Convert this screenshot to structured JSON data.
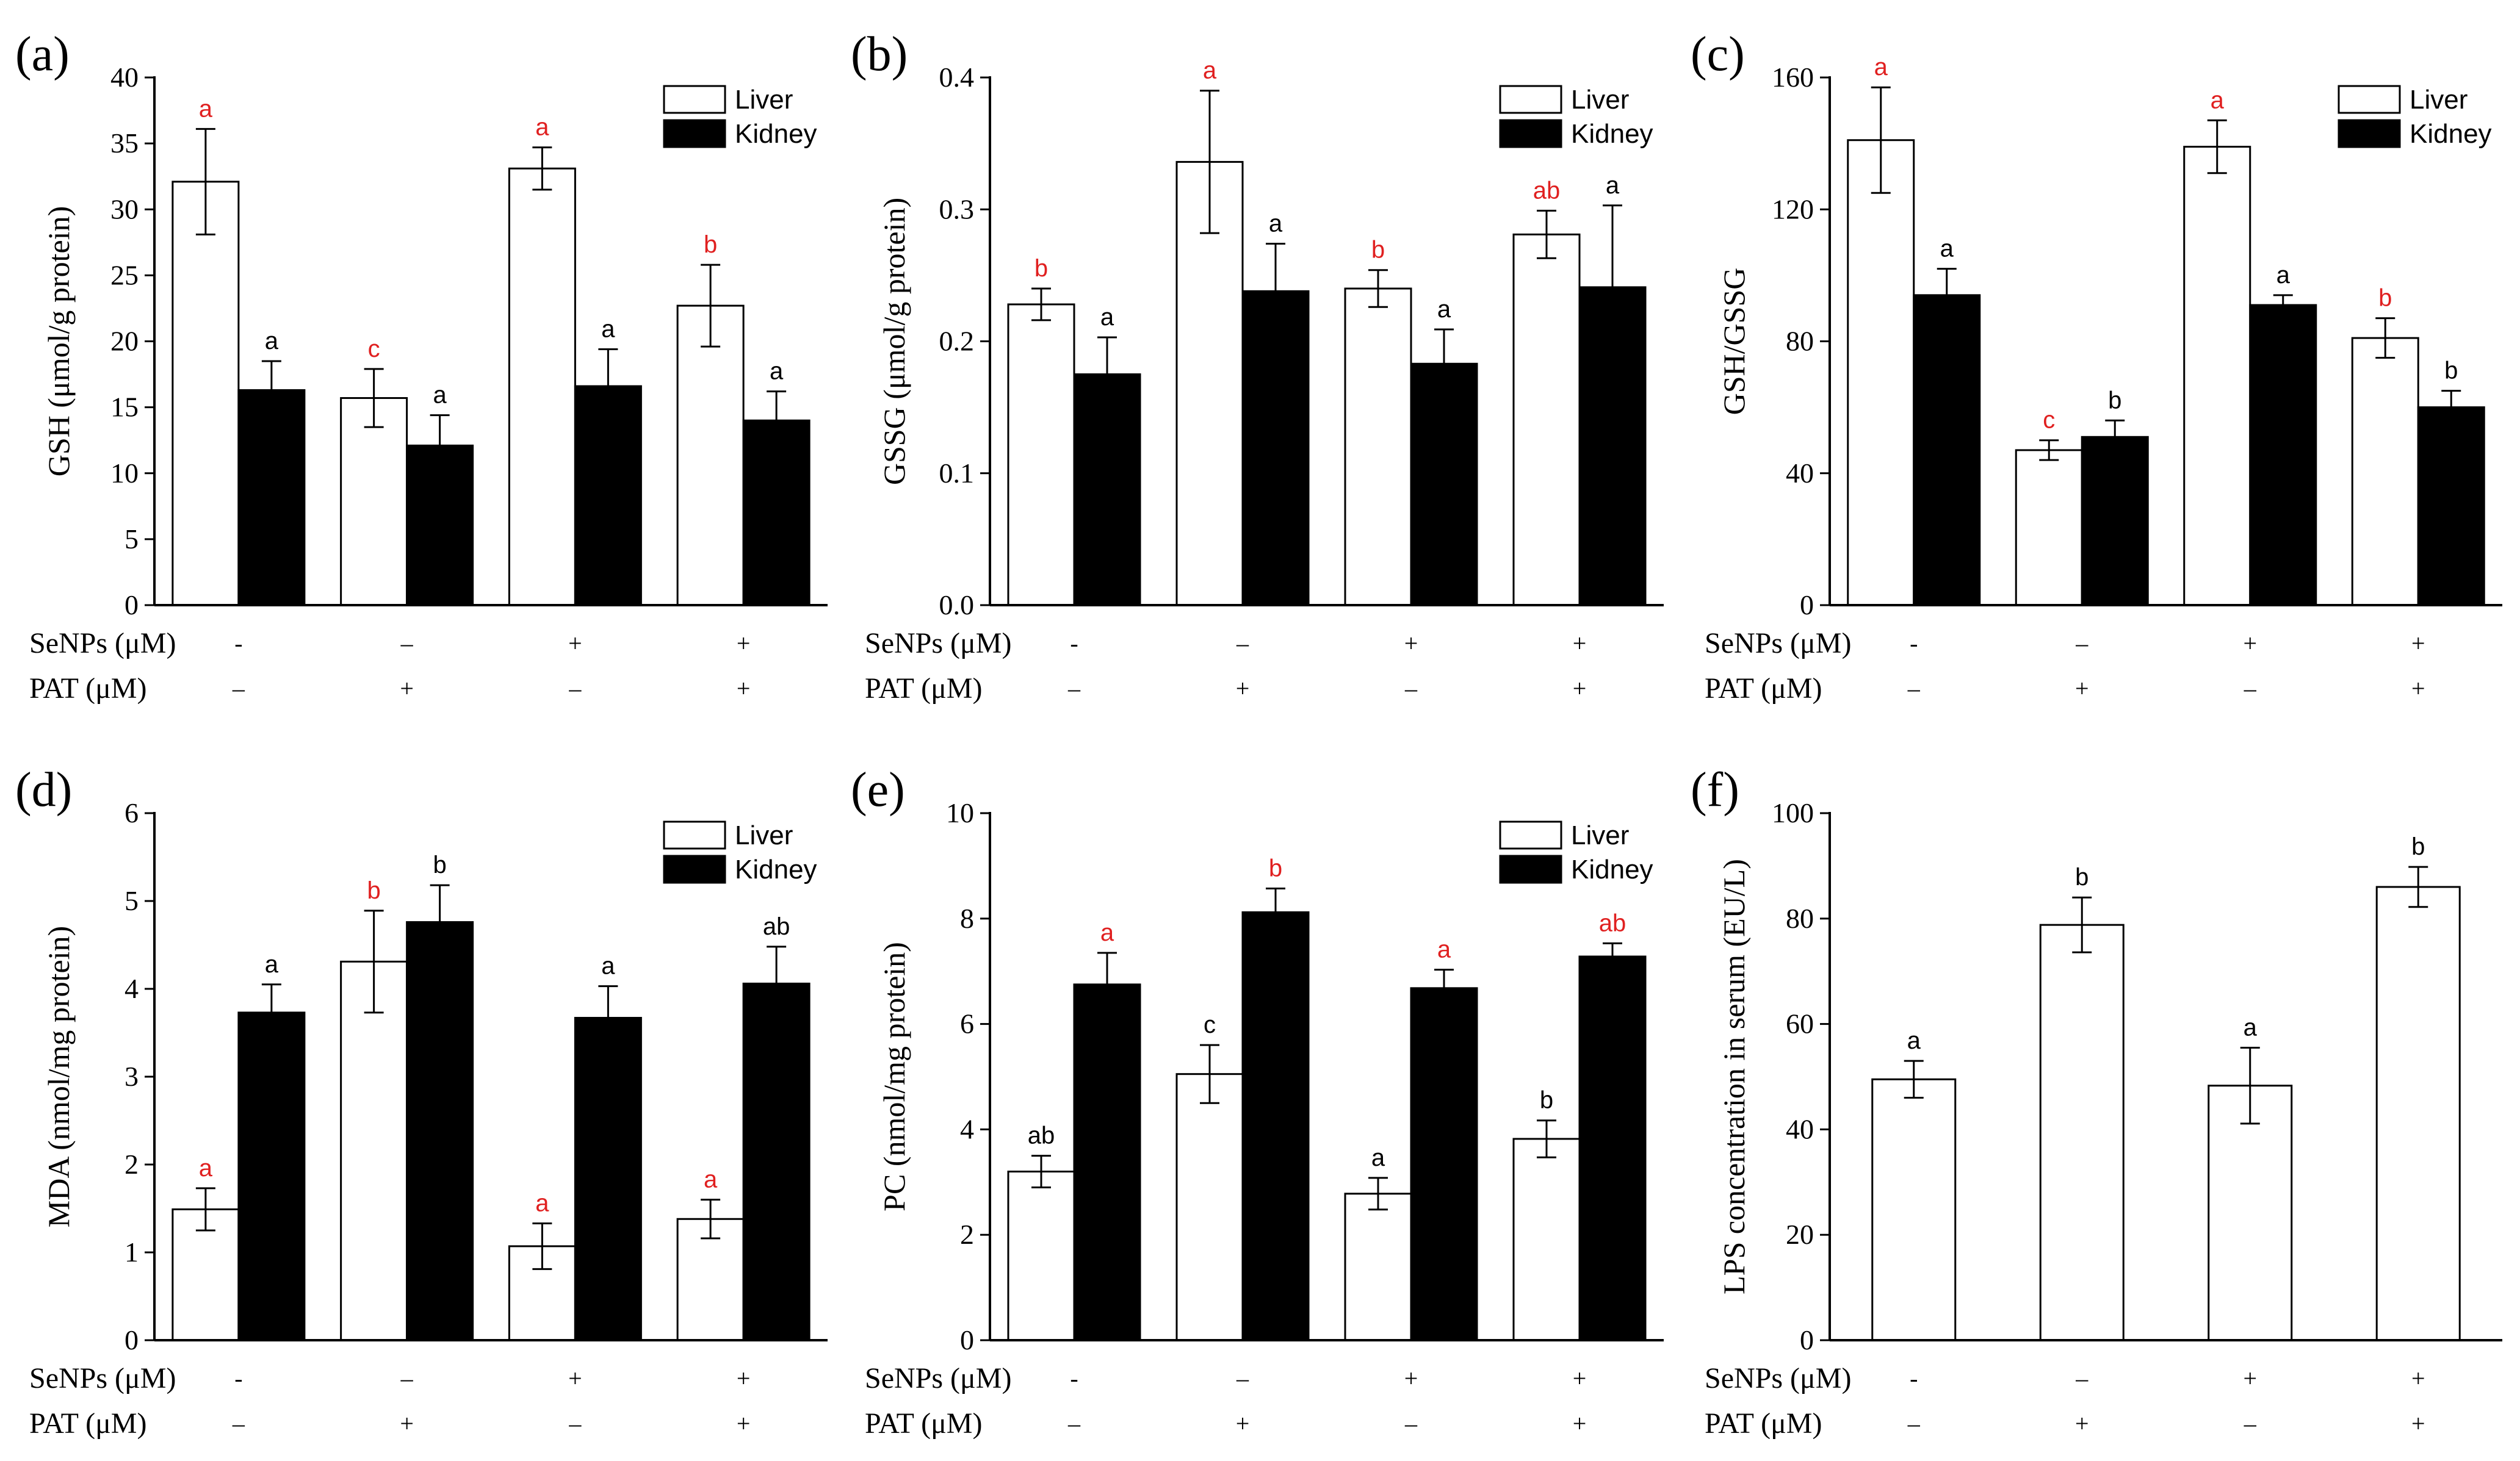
{
  "colors": {
    "liver": "#ffffff",
    "kidney": "#000000",
    "sig_red": "#e02020",
    "sig_black": "#000000"
  },
  "condition_labels": {
    "senps": "SeNPs (μM)",
    "pat": "PAT (μM)"
  },
  "conditions": {
    "senps": [
      "-",
      "–",
      "+",
      "+"
    ],
    "pat": [
      "–",
      "+",
      "–",
      "+"
    ]
  },
  "chart_data": [
    {
      "id": "a",
      "panel": "(a)",
      "type": "bar",
      "ylabel": "GSH (μmol/g protein)",
      "ylim": [
        0,
        40
      ],
      "yticks": [
        "0",
        "5",
        "10",
        "15",
        "20",
        "25",
        "30",
        "35",
        "40"
      ],
      "legend": [
        "Liver",
        "Kidney"
      ],
      "series": [
        {
          "name": "Liver",
          "values": [
            32.1,
            15.7,
            33.1,
            22.7
          ],
          "errors": [
            4.0,
            2.2,
            1.6,
            3.1
          ],
          "letters": [
            "a",
            "c",
            "a",
            "b"
          ],
          "letter_color": "red"
        },
        {
          "name": "Kidney",
          "values": [
            16.3,
            12.1,
            16.6,
            14.0
          ],
          "errors": [
            2.2,
            2.3,
            2.8,
            2.2
          ],
          "letters": [
            "a",
            "a",
            "a",
            "a"
          ],
          "letter_color": "black"
        }
      ]
    },
    {
      "id": "b",
      "panel": "(b)",
      "type": "bar",
      "ylabel": "GSSG (μmol/g protein)",
      "ylim": [
        0,
        0.4
      ],
      "yticks": [
        "0.0",
        "0.1",
        "0.2",
        "0.3",
        "0.4"
      ],
      "legend": [
        "Liver",
        "Kidney"
      ],
      "series": [
        {
          "name": "Liver",
          "values": [
            0.228,
            0.336,
            0.24,
            0.281
          ],
          "errors": [
            0.012,
            0.054,
            0.014,
            0.018
          ],
          "letters": [
            "b",
            "a",
            "b",
            "ab"
          ],
          "letter_color": "red"
        },
        {
          "name": "Kidney",
          "values": [
            0.175,
            0.238,
            0.183,
            0.241
          ],
          "errors": [
            0.028,
            0.036,
            0.026,
            0.062
          ],
          "letters": [
            "a",
            "a",
            "a",
            "a"
          ],
          "letter_color": "black"
        }
      ]
    },
    {
      "id": "c",
      "panel": "(c)",
      "type": "bar",
      "ylabel": "GSH/GSSG",
      "ylim": [
        0,
        160
      ],
      "yticks": [
        "0",
        "40",
        "80",
        "120",
        "160"
      ],
      "legend": [
        "Liver",
        "Kidney"
      ],
      "series": [
        {
          "name": "Liver",
          "values": [
            141,
            47,
            139,
            81
          ],
          "errors": [
            16,
            3,
            8,
            6
          ],
          "letters": [
            "a",
            "c",
            "a",
            "b"
          ],
          "letter_color": "red"
        },
        {
          "name": "Kidney",
          "values": [
            94,
            51,
            91,
            60
          ],
          "errors": [
            8,
            5,
            3,
            5
          ],
          "letters": [
            "a",
            "b",
            "a",
            "b"
          ],
          "letter_color": "black"
        }
      ]
    },
    {
      "id": "d",
      "panel": "(d)",
      "type": "bar",
      "ylabel": "MDA (nmol/mg protein)",
      "ylim": [
        0,
        6
      ],
      "yticks": [
        "0",
        "1",
        "2",
        "3",
        "4",
        "5",
        "6"
      ],
      "legend": [
        "Liver",
        "Kidney"
      ],
      "series": [
        {
          "name": "Liver",
          "values": [
            1.49,
            4.31,
            1.07,
            1.38
          ],
          "errors": [
            0.24,
            0.58,
            0.26,
            0.22
          ],
          "letters": [
            "a",
            "b",
            "a",
            "a"
          ],
          "letter_color": "red"
        },
        {
          "name": "Kidney",
          "values": [
            3.73,
            4.76,
            3.67,
            4.06
          ],
          "errors": [
            0.32,
            0.42,
            0.36,
            0.42
          ],
          "letters": [
            "a",
            "b",
            "a",
            "ab"
          ],
          "letter_color": "black"
        }
      ]
    },
    {
      "id": "e",
      "panel": "(e)",
      "type": "bar",
      "ylabel": "PC (nmol/mg protein)",
      "ylim": [
        0,
        10
      ],
      "yticks": [
        "0",
        "2",
        "4",
        "6",
        "8",
        "10"
      ],
      "legend": [
        "Liver",
        "Kidney"
      ],
      "series": [
        {
          "name": "Liver",
          "values": [
            3.2,
            5.05,
            2.78,
            3.82
          ],
          "errors": [
            0.3,
            0.55,
            0.3,
            0.35
          ],
          "letters": [
            "ab",
            "c",
            "a",
            "b"
          ],
          "letter_color": "black"
        },
        {
          "name": "Kidney",
          "values": [
            6.75,
            8.12,
            6.68,
            7.28
          ],
          "errors": [
            0.6,
            0.45,
            0.35,
            0.25
          ],
          "letters": [
            "a",
            "b",
            "a",
            "ab"
          ],
          "letter_color": "red"
        }
      ]
    },
    {
      "id": "f",
      "panel": "(f)",
      "type": "bar",
      "ylabel": "LPS concentration in serum (EU/L)",
      "ylim": [
        0,
        100
      ],
      "yticks": [
        "0",
        "20",
        "40",
        "60",
        "80",
        "100"
      ],
      "legend": [],
      "series": [
        {
          "name": "LPS",
          "values": [
            49.5,
            78.8,
            48.3,
            86.0
          ],
          "errors": [
            3.5,
            5.2,
            7.2,
            3.8
          ],
          "letters": [
            "a",
            "b",
            "a",
            "b"
          ],
          "letter_color": "black"
        }
      ]
    }
  ]
}
